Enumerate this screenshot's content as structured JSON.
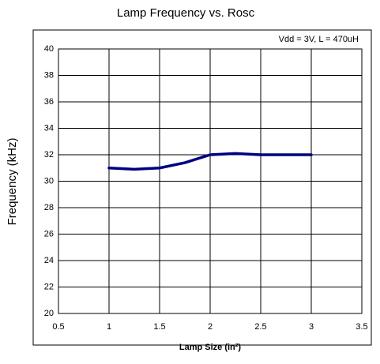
{
  "chart_data": {
    "type": "line",
    "title": "Lamp Frequency vs. Rosc",
    "annotation": "Vdd = 3V, L = 470uH",
    "xlabel": "Lamp Size (in²)",
    "ylabel": "Frequency (kHz)",
    "x": [
      1,
      1.25,
      1.5,
      1.75,
      2,
      2.25,
      2.5,
      2.75,
      3
    ],
    "series": [
      {
        "name": "Frequency",
        "color": "#000080",
        "values": [
          31,
          30.9,
          31,
          31.4,
          32,
          32.1,
          32,
          32,
          32
        ]
      }
    ],
    "xlim": [
      0.5,
      3.5
    ],
    "xticks": [
      0.5,
      1,
      1.5,
      2,
      2.5,
      3,
      3.5
    ],
    "ylim": [
      20,
      40
    ],
    "yticks": [
      20,
      22,
      24,
      26,
      28,
      30,
      32,
      34,
      36,
      38,
      40
    ],
    "grid": true
  }
}
